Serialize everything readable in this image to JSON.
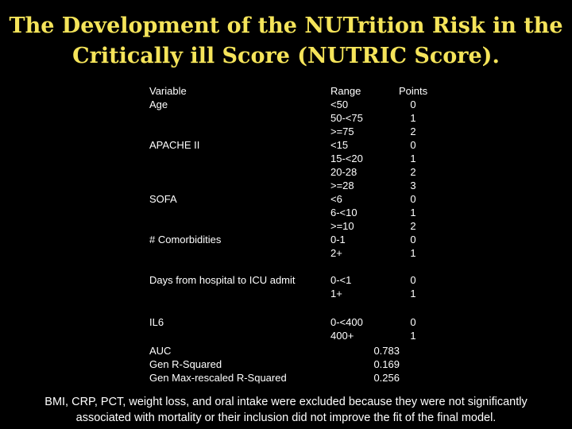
{
  "title": {
    "line1": "The Development of the NUTrition Risk in the",
    "line2": "Critically ill Score (NUTRIC Score)."
  },
  "table": {
    "headers": {
      "variable": "Variable",
      "range": "Range",
      "points": "Points"
    },
    "rows": [
      {
        "variable": "Age",
        "range": "<50",
        "points": "0"
      },
      {
        "variable": "",
        "range": "50-<75",
        "points": "1"
      },
      {
        "variable": "",
        "range": ">=75",
        "points": "2"
      },
      {
        "variable": "APACHE II",
        "range": "<15",
        "points": "0"
      },
      {
        "variable": "",
        "range": "15-<20",
        "points": "1"
      },
      {
        "variable": "",
        "range": "20-28",
        "points": "2"
      },
      {
        "variable": "",
        "range": ">=28",
        "points": "3"
      },
      {
        "variable": "SOFA",
        "range": "<6",
        "points": "0"
      },
      {
        "variable": "",
        "range": "6-<10",
        "points": "1"
      },
      {
        "variable": "",
        "range": ">=10",
        "points": "2"
      },
      {
        "variable": "# Comorbidities",
        "range": "0-1",
        "points": "0"
      },
      {
        "variable": "",
        "range": "2+",
        "points": "1"
      },
      {
        "variable": "Days from hospital to ICU admit",
        "range": "0-<1",
        "points": "0"
      },
      {
        "variable": "",
        "range": "1+",
        "points": "1"
      },
      {
        "variable": "IL6",
        "range": "0-<400",
        "points": "0"
      },
      {
        "variable": "",
        "range": "400+",
        "points": "1"
      }
    ],
    "stats": [
      {
        "label": "AUC",
        "value": "0.783"
      },
      {
        "label": "Gen R-Squared",
        "value": "0.169"
      },
      {
        "label": "Gen Max-rescaled R-Squared",
        "value": "0.256"
      }
    ]
  },
  "footnote": {
    "line1": "BMI, CRP, PCT, weight loss, and oral intake were excluded because they were not significantly",
    "line2": "associated with mortality or their inclusion did not improve the fit of the final model."
  }
}
